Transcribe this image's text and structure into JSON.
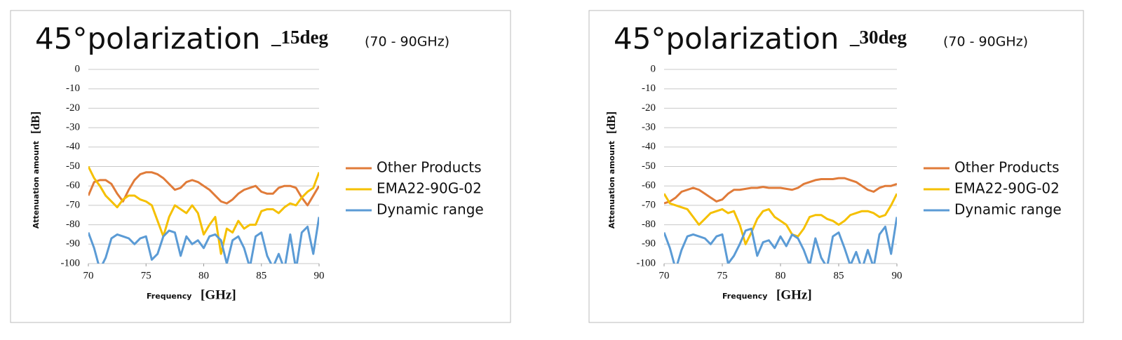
{
  "chart_data": [
    {
      "type": "line",
      "title": "45°polarization",
      "title_suffix": "_15deg",
      "subtitle": "(70 - 90GHz)",
      "x_label": "Frequency",
      "x_unit": "[GHz]",
      "y_label": "Attenuation amount",
      "y_unit": "[dB]",
      "xlim": [
        70,
        90
      ],
      "xticks": [
        70,
        75,
        80,
        85,
        90
      ],
      "ylim": [
        -100,
        0
      ],
      "yticks": [
        0,
        -10,
        -20,
        -30,
        -40,
        -50,
        -60,
        -70,
        -80,
        -90,
        -100
      ],
      "grid": true,
      "legend": "right",
      "x": [
        70,
        70.5,
        71,
        71.5,
        72,
        72.5,
        73,
        73.5,
        74,
        74.5,
        75,
        75.5,
        76,
        76.5,
        77,
        77.5,
        78,
        78.5,
        79,
        79.5,
        80,
        80.5,
        81,
        81.5,
        82,
        82.5,
        83,
        83.5,
        84,
        84.5,
        85,
        85.5,
        86,
        86.5,
        87,
        87.5,
        88,
        88.5,
        89,
        89.5,
        90
      ],
      "series": [
        {
          "name": "Other Products",
          "color": "#e07b39",
          "values": [
            -65,
            -58,
            -57,
            -57,
            -59,
            -64,
            -68,
            -62,
            -57,
            -54,
            -53,
            -53,
            -54,
            -56,
            -59,
            -62,
            -61,
            -58,
            -57,
            -58,
            -60,
            -62,
            -65,
            -68,
            -69,
            -67,
            -64,
            -62,
            -61,
            -60,
            -63,
            -64,
            -64,
            -61,
            -60,
            -60,
            -61,
            -66,
            -70,
            -65,
            -60
          ]
        },
        {
          "name": "EMA22-90G-02",
          "color": "#f5c000",
          "values": [
            -50,
            -56,
            -60,
            -65,
            -68,
            -71,
            -67,
            -65,
            -65,
            -67,
            -68,
            -70,
            -78,
            -86,
            -76,
            -70,
            -72,
            -74,
            -70,
            -74,
            -85,
            -80,
            -76,
            -95,
            -82,
            -84,
            -78,
            -82,
            -80,
            -80,
            -73,
            -72,
            -72,
            -74,
            -71,
            -69,
            -70,
            -66,
            -63,
            -61,
            -53
          ]
        },
        {
          "name": "Dynamic range",
          "color": "#5b9bd5",
          "values": [
            -84,
            -92,
            -103,
            -97,
            -87,
            -85,
            -86,
            -87,
            -90,
            -87,
            -86,
            -98,
            -95,
            -86,
            -83,
            -84,
            -96,
            -86,
            -90,
            -88,
            -92,
            -86,
            -85,
            -88,
            -100,
            -88,
            -86,
            -92,
            -102,
            -86,
            -84,
            -96,
            -102,
            -95,
            -103,
            -85,
            -103,
            -84,
            -81,
            -95,
            -76
          ]
        }
      ]
    },
    {
      "type": "line",
      "title": "45°polarization",
      "title_suffix": "_30deg",
      "subtitle": "(70 - 90GHz)",
      "x_label": "Frequency",
      "x_unit": "[GHz]",
      "y_label": "Attenuation amount",
      "y_unit": "[dB]",
      "xlim": [
        70,
        90
      ],
      "xticks": [
        70,
        75,
        80,
        85,
        90
      ],
      "ylim": [
        -100,
        0
      ],
      "yticks": [
        0,
        -10,
        -20,
        -30,
        -40,
        -50,
        -60,
        -70,
        -80,
        -90,
        -100
      ],
      "grid": true,
      "legend": "right",
      "x": [
        70,
        70.5,
        71,
        71.5,
        72,
        72.5,
        73,
        73.5,
        74,
        74.5,
        75,
        75.5,
        76,
        76.5,
        77,
        77.5,
        78,
        78.5,
        79,
        79.5,
        80,
        80.5,
        81,
        81.5,
        82,
        82.5,
        83,
        83.5,
        84,
        84.5,
        85,
        85.5,
        86,
        86.5,
        87,
        87.5,
        88,
        88.5,
        89,
        89.5,
        90
      ],
      "series": [
        {
          "name": "Other Products",
          "color": "#e07b39",
          "values": [
            -69,
            -68,
            -66,
            -63,
            -62,
            -61,
            -62,
            -64,
            -66,
            -68,
            -67,
            -64,
            -62,
            -62,
            -61.5,
            -61,
            -61,
            -60.5,
            -61,
            -61,
            -61,
            -61.5,
            -62,
            -61,
            -59,
            -58,
            -57,
            -56.5,
            -56.5,
            -56.5,
            -56,
            -56,
            -57,
            -58,
            -60,
            -62,
            -63,
            -61,
            -60,
            -60,
            -59
          ]
        },
        {
          "name": "EMA22-90G-02",
          "color": "#f5c000",
          "values": [
            -64,
            -69,
            -70,
            -71,
            -72,
            -76,
            -80,
            -77,
            -74,
            -73,
            -72,
            -74,
            -73,
            -80,
            -90,
            -84,
            -77,
            -73,
            -72,
            -76,
            -78,
            -80,
            -85,
            -86,
            -82,
            -76,
            -75,
            -75,
            -77,
            -78,
            -80,
            -78,
            -75,
            -74,
            -73,
            -73,
            -74,
            -76,
            -75,
            -70,
            -64
          ]
        },
        {
          "name": "Dynamic range",
          "color": "#5b9bd5",
          "values": [
            -84,
            -92,
            -103,
            -93,
            -86,
            -85,
            -86,
            -87,
            -90,
            -86,
            -85,
            -100,
            -96,
            -90,
            -83,
            -82,
            -96,
            -89,
            -88,
            -92,
            -86,
            -91,
            -85,
            -87,
            -93,
            -101,
            -87,
            -97,
            -102,
            -86,
            -84,
            -92,
            -101,
            -94,
            -103,
            -93,
            -102,
            -85,
            -81,
            -95,
            -76
          ]
        }
      ]
    }
  ]
}
